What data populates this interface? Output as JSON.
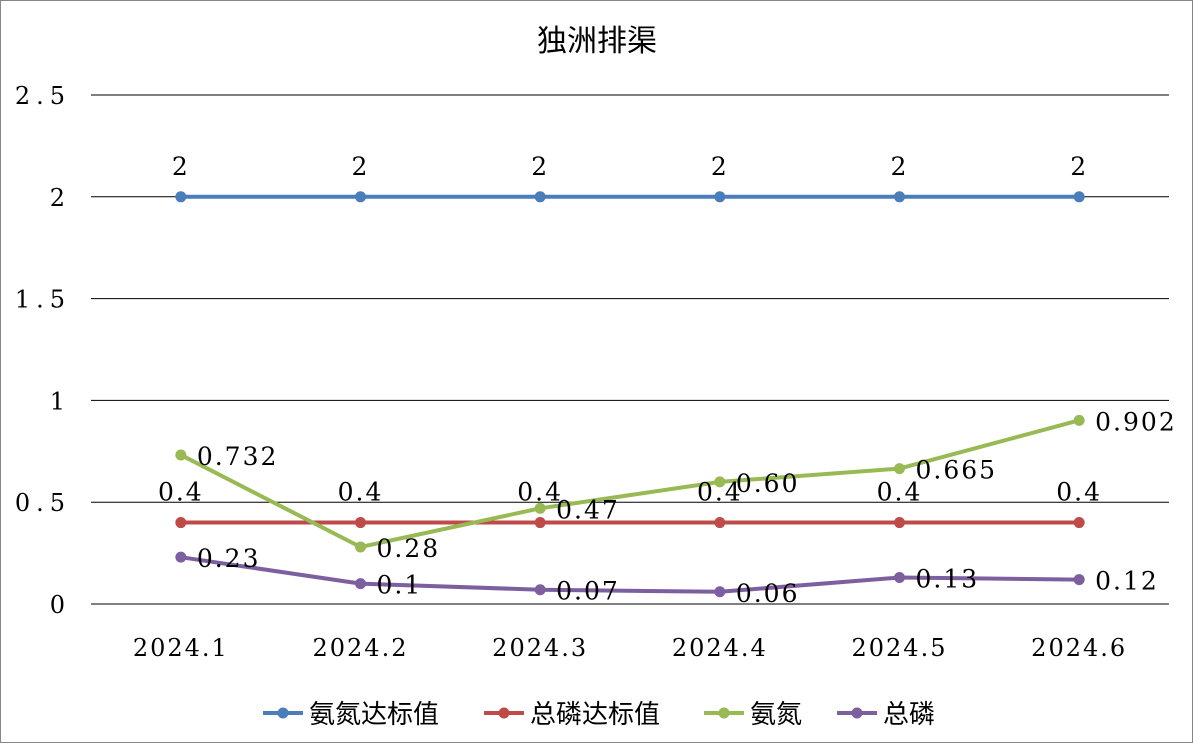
{
  "chart_data": {
    "type": "line",
    "title": "独洲排渠",
    "categories": [
      "2024.1",
      "2024.2",
      "2024.3",
      "2024.4",
      "2024.5",
      "2024.6"
    ],
    "ylim": [
      0,
      2.5
    ],
    "yticks": [
      0,
      0.5,
      1,
      1.5,
      2,
      2.5
    ],
    "ytick_labels": [
      "0",
      "0.5",
      "1",
      "1.5",
      "2",
      "2.5"
    ],
    "grid": true,
    "legend": "bottom",
    "series": [
      {
        "name": "氨氮达标值",
        "color": "#4a7ebb",
        "values": [
          2,
          2,
          2,
          2,
          2,
          2
        ],
        "labels": [
          "2",
          "2",
          "2",
          "2",
          "2",
          "2"
        ],
        "label_pos": "above"
      },
      {
        "name": "总磷达标值",
        "color": "#be4b48",
        "values": [
          0.4,
          0.4,
          0.4,
          0.4,
          0.4,
          0.4
        ],
        "labels": [
          "0.4",
          "0.4",
          "0.4",
          "0.4",
          "0.4",
          "0.4"
        ],
        "label_pos": "above"
      },
      {
        "name": "氨氮",
        "color": "#98b954",
        "values": [
          0.732,
          0.28,
          0.47,
          0.6,
          0.665,
          0.902
        ],
        "labels": [
          "0.732",
          "0.28",
          "0.47",
          "0.60",
          "0.665",
          "0.902"
        ],
        "label_pos": "right"
      },
      {
        "name": "总磷",
        "color": "#7d5fa0",
        "values": [
          0.23,
          0.1,
          0.07,
          0.06,
          0.13,
          0.12
        ],
        "labels": [
          "0.23",
          "0.1",
          "0.07",
          "0.06",
          "0.13",
          "0.12"
        ],
        "label_pos": "right"
      }
    ]
  }
}
